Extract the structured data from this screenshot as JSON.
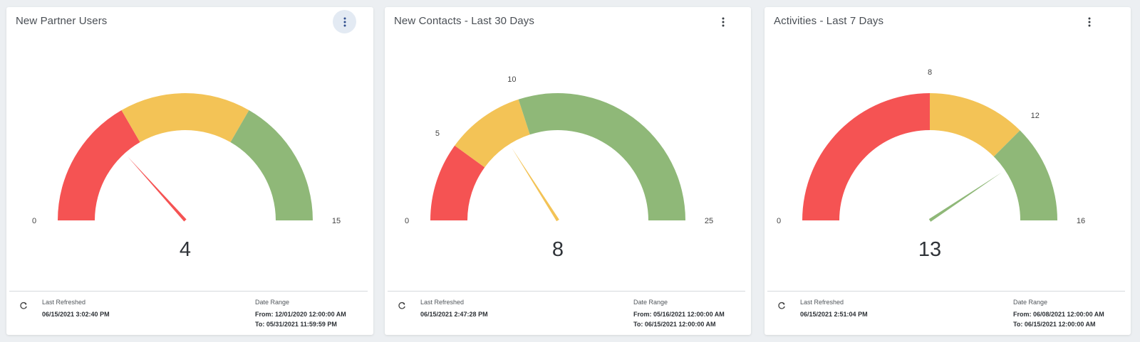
{
  "colors": {
    "red": "#f55353",
    "yellow": "#f3c356",
    "green": "#8fb878"
  },
  "icons": {
    "menu": "more-vert-icon",
    "refresh": "refresh-icon"
  },
  "cards": [
    {
      "title": "New Partner Users",
      "menu_active": true,
      "value": "4",
      "footer": {
        "last_refreshed_label": "Last Refreshed",
        "last_refreshed": "06/15/2021 3:02:40 PM",
        "date_range_label": "Date Range",
        "from": "From: 12/01/2020 12:00:00 AM",
        "to": "To: 05/31/2021 11:59:59 PM"
      },
      "chart_data": {
        "type": "gauge",
        "min": 0,
        "max": 15,
        "value": 4,
        "bands": [
          {
            "from": 0,
            "to": 5,
            "color": "red"
          },
          {
            "from": 5,
            "to": 10,
            "color": "yellow"
          },
          {
            "from": 10,
            "to": 15,
            "color": "green"
          }
        ],
        "tick_labels": [
          {
            "value": 0,
            "text": "0"
          },
          {
            "value": 15,
            "text": "15"
          }
        ],
        "needle_color": "red"
      }
    },
    {
      "title": "New Contacts - Last 30 Days",
      "menu_active": false,
      "value": "8",
      "footer": {
        "last_refreshed_label": "Last Refreshed",
        "last_refreshed": "06/15/2021 2:47:28 PM",
        "date_range_label": "Date Range",
        "from": "From: 05/16/2021 12:00:00 AM",
        "to": "To: 06/15/2021 12:00:00 AM"
      },
      "chart_data": {
        "type": "gauge",
        "min": 0,
        "max": 25,
        "value": 8,
        "bands": [
          {
            "from": 0,
            "to": 5,
            "color": "red"
          },
          {
            "from": 5,
            "to": 10,
            "color": "yellow"
          },
          {
            "from": 10,
            "to": 25,
            "color": "green"
          }
        ],
        "tick_labels": [
          {
            "value": 0,
            "text": "0"
          },
          {
            "value": 5,
            "text": "5"
          },
          {
            "value": 10,
            "text": "10"
          },
          {
            "value": 25,
            "text": "25"
          }
        ],
        "needle_color": "yellow"
      }
    },
    {
      "title": "Activities - Last 7 Days",
      "menu_active": false,
      "value": "13",
      "footer": {
        "last_refreshed_label": "Last Refreshed",
        "last_refreshed": "06/15/2021 2:51:04 PM",
        "date_range_label": "Date Range",
        "from": "From: 06/08/2021 12:00:00 AM",
        "to": "To: 06/15/2021 12:00:00 AM"
      },
      "chart_data": {
        "type": "gauge",
        "min": 0,
        "max": 16,
        "value": 13,
        "bands": [
          {
            "from": 0,
            "to": 8,
            "color": "red"
          },
          {
            "from": 8,
            "to": 12,
            "color": "yellow"
          },
          {
            "from": 12,
            "to": 16,
            "color": "green"
          }
        ],
        "tick_labels": [
          {
            "value": 0,
            "text": "0"
          },
          {
            "value": 8,
            "text": "8"
          },
          {
            "value": 12,
            "text": "12"
          },
          {
            "value": 16,
            "text": "16"
          }
        ],
        "needle_color": "green"
      }
    }
  ]
}
